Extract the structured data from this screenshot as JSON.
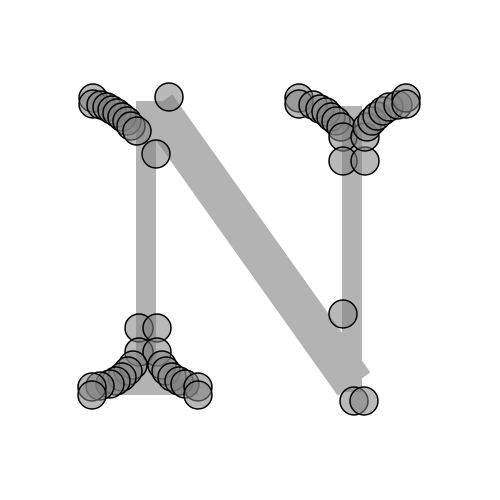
{
  "glyph": {
    "letter": "N",
    "stroke_color": "#b3b3b3",
    "marker_fill": "#808080",
    "marker_edge": "#000000"
  }
}
